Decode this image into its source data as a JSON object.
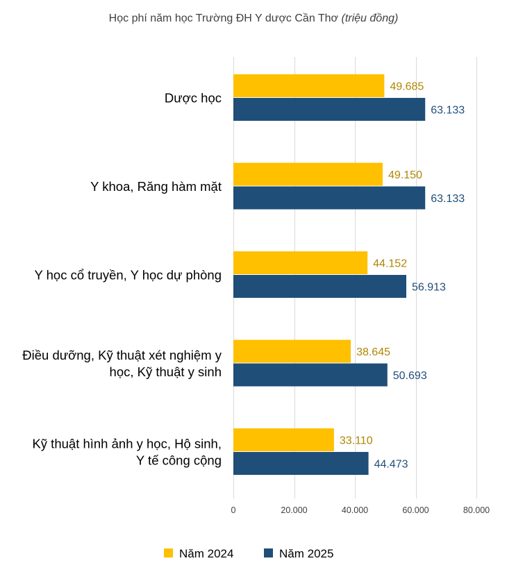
{
  "chart_data": {
    "type": "bar",
    "orientation": "horizontal",
    "title": "Học phí năm học Trường ĐH Y dược Cần Thơ",
    "title_suffix": "(triệu đồng)",
    "categories": [
      [
        "Dược học"
      ],
      [
        "Y khoa, Răng hàm mặt"
      ],
      [
        "Y học cổ truyền, Y học dự phòng"
      ],
      [
        "Điều dưỡng, Kỹ thuật xét nghiệm y",
        "học, Kỹ thuật y sinh"
      ],
      [
        "Kỹ thuật hình ảnh y học, Hộ sinh,",
        "Y tế công cộng"
      ]
    ],
    "series": [
      {
        "name": "Năm 2024",
        "color": "#ffc000",
        "label_color": "#b08600",
        "values": [
          49.685,
          49.15,
          44.152,
          38.645,
          33.11
        ],
        "labels": [
          "49.685",
          "49.150",
          "44.152",
          "38.645",
          "33.110"
        ]
      },
      {
        "name": "Năm 2025",
        "color": "#1f4e79",
        "label_color": "#1f4e79",
        "values": [
          63.133,
          63.133,
          56.913,
          50.693,
          44.473
        ],
        "labels": [
          "63.133",
          "63.133",
          "56.913",
          "50.693",
          "44.473"
        ]
      }
    ],
    "xlim": [
      0,
      80
    ],
    "xticks": [
      0,
      20,
      40,
      60,
      80
    ],
    "xtick_labels": [
      "0",
      "20.000",
      "40.000",
      "60.000",
      "80.000"
    ],
    "grid": true,
    "legend": "bottom"
  }
}
